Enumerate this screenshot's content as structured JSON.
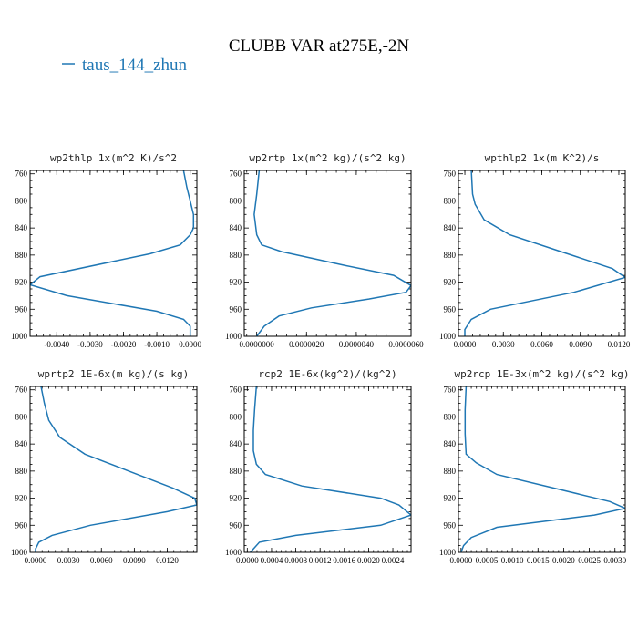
{
  "title": "CLUBB VAR at275E,-2N",
  "legend": {
    "label": "taus_144_zhun",
    "color": "#1f77b4"
  },
  "y_axis": {
    "ticks": [
      760,
      800,
      840,
      880,
      920,
      960,
      1000
    ],
    "range": [
      755,
      1000
    ],
    "inverted": true
  },
  "chart_data": [
    {
      "type": "line",
      "title": "wp2thlp  1x(m^2 K)/s^2",
      "xlim": [
        -0.0048,
        0.0002
      ],
      "xticks": [
        -0.004,
        -0.003,
        -0.002,
        -0.001,
        0.0
      ],
      "xtick_labels": [
        "-0.0040",
        "-0.0030",
        "-0.0020",
        "-0.0010",
        "0.0000"
      ],
      "series": [
        {
          "x": [
            -0.0002,
            -0.0001,
            0.0,
            0.0001,
            0.0001,
            0.0,
            -0.0003,
            -0.0012,
            -0.0045,
            -0.0048,
            -0.0037,
            -0.001,
            -0.0002,
            0.0,
            0.0
          ],
          "y": [
            755,
            780,
            800,
            820,
            840,
            850,
            865,
            878,
            912,
            924,
            940,
            963,
            975,
            985,
            1000
          ]
        }
      ]
    },
    {
      "type": "line",
      "title": "wp2rtp  1x(m^2 kg)/(s^2 kg)",
      "xlim": [
        -5e-07,
        6.2e-06
      ],
      "xticks": [
        0.0,
        2e-06,
        4e-06,
        6e-06
      ],
      "xtick_labels": [
        "0.0000000",
        "0.0000020",
        "0.0000040",
        "0.0000060"
      ],
      "series": [
        {
          "x": [
            1e-07,
            0.0,
            -1e-07,
            0.0,
            2e-07,
            1e-06,
            3.5e-06,
            5.5e-06,
            6.2e-06,
            6e-06,
            4.5e-06,
            2.2e-06,
            9e-07,
            3e-07,
            0.0
          ],
          "y": [
            755,
            790,
            820,
            850,
            865,
            875,
            895,
            910,
            925,
            935,
            945,
            958,
            970,
            985,
            1000
          ]
        }
      ]
    },
    {
      "type": "line",
      "title": "wpthlp2  1x(m K^2)/s",
      "xlim": [
        -0.0005,
        0.0125
      ],
      "xticks": [
        0.0,
        0.003,
        0.006,
        0.009,
        0.012
      ],
      "xtick_labels": [
        "0.0000",
        "0.0030",
        "0.0060",
        "0.0090",
        "0.0120"
      ],
      "series": [
        {
          "x": [
            0.0005,
            0.0006,
            0.0008,
            0.0015,
            0.0035,
            0.0075,
            0.0115,
            0.0125,
            0.0085,
            0.002,
            0.0005,
            0.0,
            0.0
          ],
          "y": [
            755,
            790,
            805,
            828,
            850,
            875,
            900,
            913,
            935,
            960,
            975,
            990,
            1000
          ]
        }
      ]
    },
    {
      "type": "line",
      "title": "wprtp2  1E-6x(m kg)/(s kg)",
      "xlim": [
        -0.0005,
        0.0147
      ],
      "xticks": [
        0.0,
        0.003,
        0.006,
        0.009,
        0.012
      ],
      "xtick_labels": [
        "0.0000",
        "0.0030",
        "0.0060",
        "0.0090",
        "0.0120"
      ],
      "series": [
        {
          "x": [
            0.0005,
            0.0008,
            0.0012,
            0.0022,
            0.0045,
            0.0085,
            0.0125,
            0.0145,
            0.0147,
            0.012,
            0.005,
            0.0015,
            0.0003,
            0.0,
            0.0
          ],
          "y": [
            755,
            780,
            805,
            830,
            855,
            880,
            905,
            920,
            930,
            940,
            960,
            975,
            985,
            995,
            1000
          ]
        }
      ]
    },
    {
      "type": "line",
      "title": "rcp2  1E-6x(kg^2)/(kg^2)",
      "xlim": [
        -5e-05,
        0.0027
      ],
      "xticks": [
        0.0,
        0.0004,
        0.0008,
        0.0012,
        0.0016,
        0.002,
        0.0024
      ],
      "xtick_labels": [
        "0.0000",
        "0.0004",
        "0.0008",
        "0.0012",
        "0.0016",
        "0.0020",
        "0.0024"
      ],
      "series": [
        {
          "x": [
            0.00015,
            0.00012,
            0.0001,
            0.0001,
            0.00015,
            0.0003,
            0.0009,
            0.0022,
            0.0025,
            0.0027,
            0.0022,
            0.0008,
            0.0002,
            0.0001,
            5e-05
          ],
          "y": [
            755,
            790,
            820,
            850,
            870,
            885,
            902,
            920,
            930,
            945,
            960,
            975,
            985,
            995,
            1000
          ]
        }
      ]
    },
    {
      "type": "line",
      "title": "wp2rcp  1E-3x(m^2 kg)/(s^2 kg)",
      "xlim": [
        -5e-05,
        0.0032
      ],
      "xticks": [
        0.0,
        0.0005,
        0.001,
        0.0015,
        0.002,
        0.0025,
        0.003
      ],
      "xtick_labels": [
        "0.0000",
        "0.0005",
        "0.0010",
        "0.0015",
        "0.0020",
        "0.0025",
        "0.0030"
      ],
      "series": [
        {
          "x": [
            0.0001,
            8e-05,
            8e-05,
            0.0001,
            0.0003,
            0.0007,
            0.0018,
            0.0029,
            0.0032,
            0.0026,
            0.0007,
            0.0002,
            5e-05,
            0.0
          ],
          "y": [
            755,
            790,
            825,
            855,
            868,
            885,
            905,
            925,
            935,
            945,
            963,
            978,
            990,
            1000
          ]
        }
      ]
    }
  ]
}
